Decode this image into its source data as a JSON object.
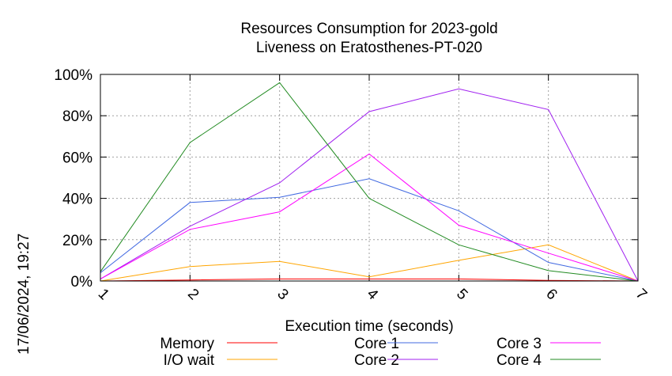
{
  "chart_data": {
    "type": "line",
    "title": [
      "Resources Consumption for 2023-gold",
      "Liveness on Eratosthenes-PT-020"
    ],
    "xlabel": "Execution time (seconds)",
    "ylabel": "",
    "xlim": [
      1,
      7
    ],
    "ylim": [
      0,
      100
    ],
    "x_ticks": [
      "1",
      "2",
      "3",
      "4",
      "5",
      "6",
      "7"
    ],
    "y_ticks": [
      "0%",
      "20%",
      "40%",
      "60%",
      "80%",
      "100%"
    ],
    "grid": true,
    "legend_position": "bottom",
    "x": [
      1,
      2,
      3,
      4,
      5,
      6,
      7
    ],
    "series": [
      {
        "name": "Memory",
        "color": "#ff0000",
        "values": [
          0,
          0.5,
          1,
          1,
          1,
          0.3,
          0
        ]
      },
      {
        "name": "I/O wait",
        "color": "#ffa500",
        "values": [
          0,
          7,
          9.5,
          2,
          10,
          17.5,
          0
        ]
      },
      {
        "name": "Core 1",
        "color": "#4169e1",
        "values": [
          4,
          38,
          40.5,
          49.5,
          34,
          9,
          0
        ]
      },
      {
        "name": "Core 2",
        "color": "#a020f0",
        "values": [
          1,
          26.5,
          47.5,
          82,
          93,
          83,
          0
        ]
      },
      {
        "name": "Core 3",
        "color": "#ff00ff",
        "values": [
          1,
          25,
          33.5,
          61.5,
          27,
          13.5,
          0
        ]
      },
      {
        "name": "Core 4",
        "color": "#228b22",
        "values": [
          4.5,
          67,
          96,
          40,
          17.5,
          5,
          0
        ]
      }
    ]
  },
  "timestamp": "17/06/2024, 19:27"
}
